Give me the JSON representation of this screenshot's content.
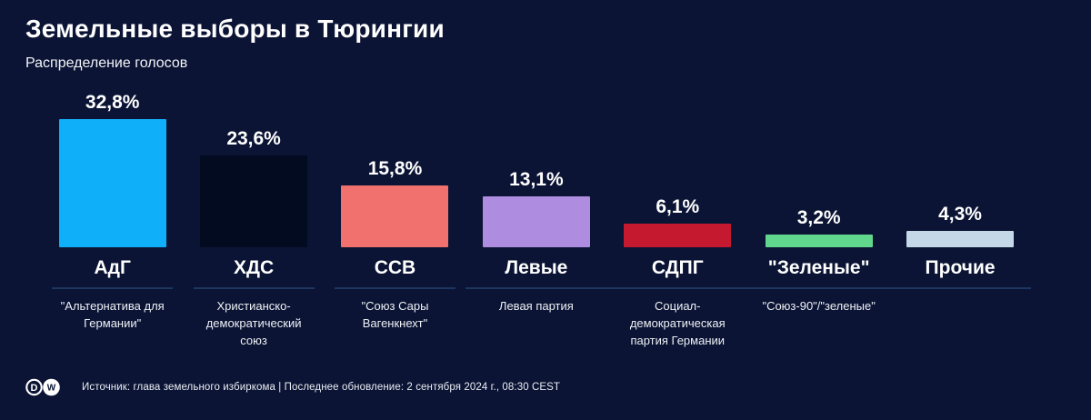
{
  "title": "Земельные выборы в Тюрингии",
  "subtitle": "Распределение голосов",
  "footer": {
    "source": "Источник: глава земельного избиркома | Последнее обновление: 2 сентября 2024 г., 08:30 CEST",
    "logo": "dw-logo"
  },
  "colors": {
    "background": "#0b1434",
    "text": "#ffffff",
    "divider": "#1e355f",
    "description_text": "#eef1f6"
  },
  "chart_data": {
    "type": "bar",
    "title": "Земельные выборы в Тюрингии",
    "subtitle": "Распределение голосов",
    "categories": [
      "АдГ",
      "ХДС",
      "ССВ",
      "Левые",
      "СДПГ",
      "\"Зеленые\"",
      "Прочие"
    ],
    "values": [
      32.8,
      23.6,
      15.8,
      13.1,
      6.1,
      3.2,
      4.3
    ],
    "value_labels": [
      "32,8%",
      "23,6%",
      "15,8%",
      "13,1%",
      "6,1%",
      "3,2%",
      "4,3%"
    ],
    "descriptions": [
      "\"Альтернатива для Германии\"",
      "Христианско-демократический союз",
      "\"Союз Сары Вагенкнехт\"",
      "Левая партия",
      "Социал-демократическая партия Германии",
      "\"Союз-90\"/\"зеленые\"",
      ""
    ],
    "bar_colors": [
      "#0faffa",
      "#030b21",
      "#f0716d",
      "#ae8ce0",
      "#c4192e",
      "#60d78d",
      "#c5d8e8"
    ],
    "xlabel": "",
    "ylabel": "",
    "ylim": [
      0,
      35
    ],
    "grid": false,
    "axes_visible": false,
    "legend": "none",
    "data_labels": "above-bars"
  }
}
